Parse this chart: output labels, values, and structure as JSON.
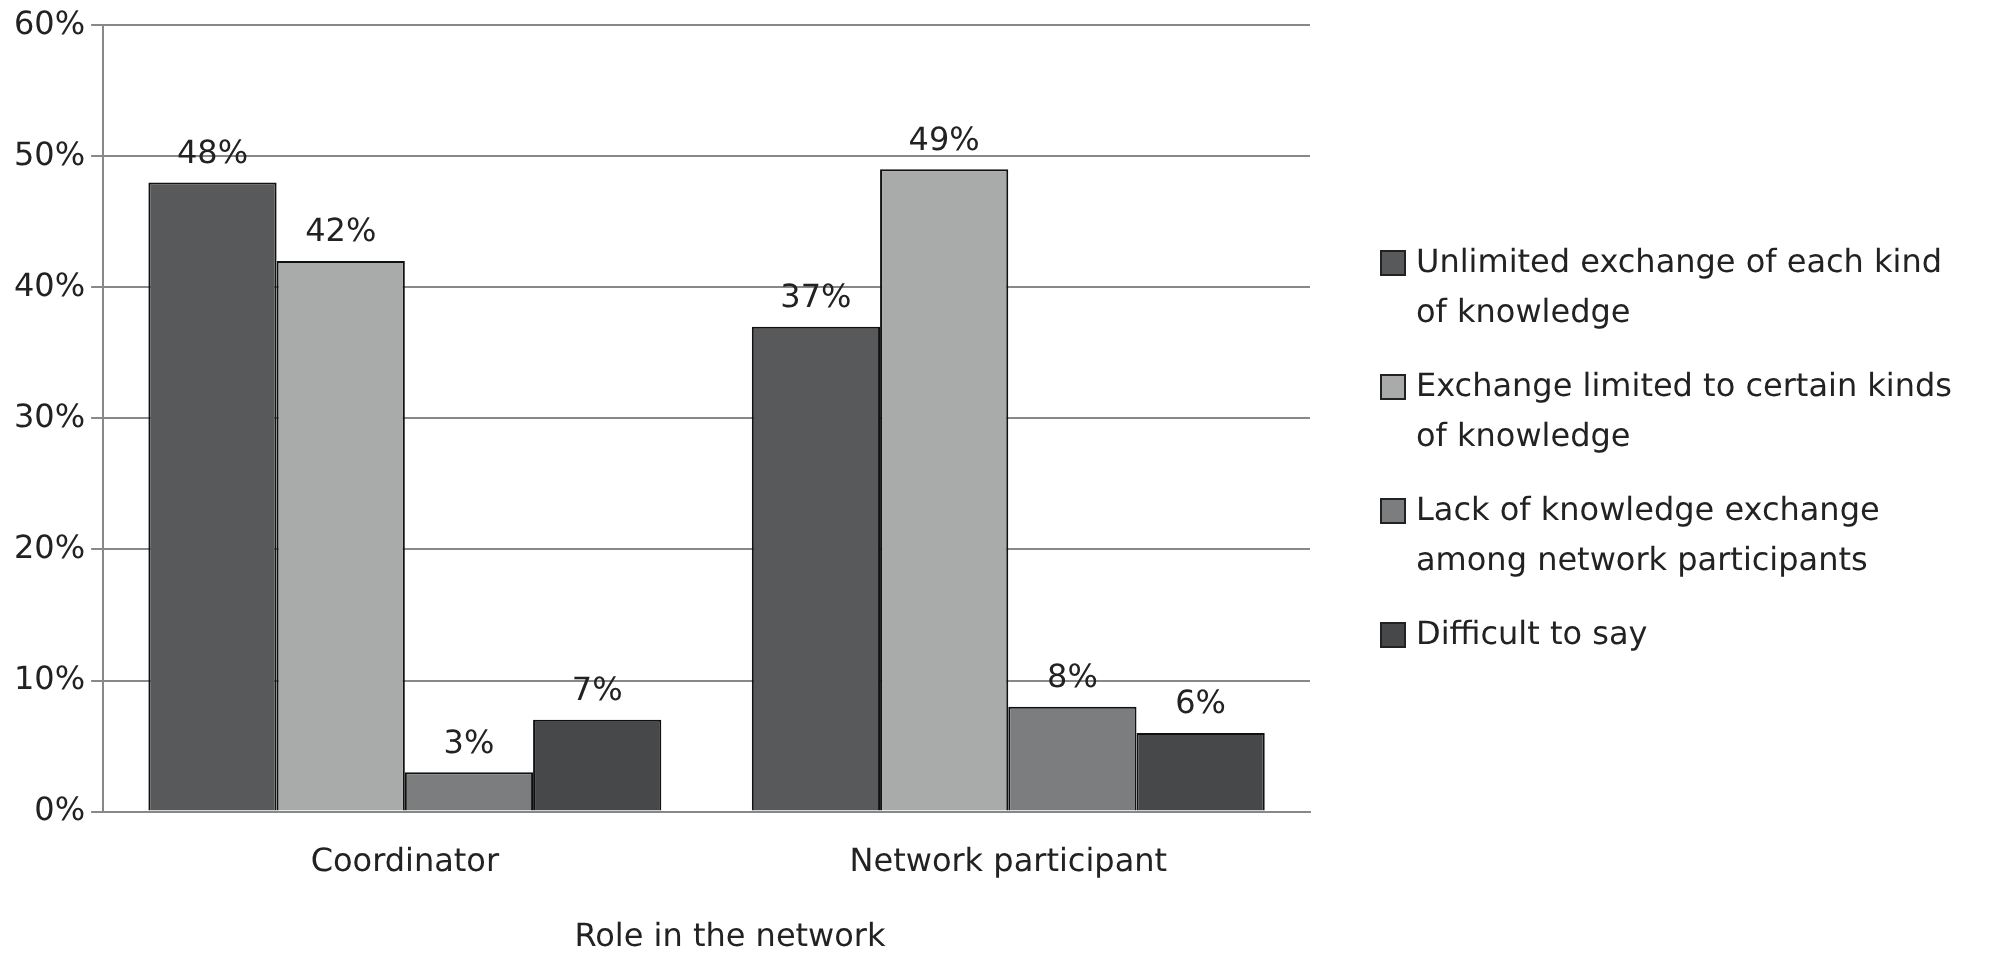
{
  "chart_data": {
    "type": "bar",
    "xlabel": "Role in the network",
    "categories": [
      "Coordinator",
      "Network participant"
    ],
    "series": [
      {
        "name": "Unlimited exchange of each kind of knowledge",
        "color": "#58595b",
        "values": [
          48,
          37
        ],
        "value_labels": [
          "48%",
          "37%"
        ]
      },
      {
        "name": "Exchange limited to certain kinds of knowledge",
        "color": "#a9aaaa",
        "values": [
          42,
          49
        ],
        "value_labels": [
          "42%",
          "49%"
        ]
      },
      {
        "name": "Lack of knowledge exchange among network participants",
        "color": "#7c7d7f",
        "values": [
          3,
          8
        ],
        "value_labels": [
          "3%",
          "8%"
        ]
      },
      {
        "name": "Difficult to say",
        "color": "#47484a",
        "values": [
          7,
          6
        ],
        "value_labels": [
          "7%",
          "6%"
        ]
      }
    ],
    "ylim": [
      0,
      60
    ],
    "yticks": [
      {
        "value": 0,
        "label": "0%"
      },
      {
        "value": 10,
        "label": "10%"
      },
      {
        "value": 20,
        "label": "20%"
      },
      {
        "value": 30,
        "label": "30%"
      },
      {
        "value": 40,
        "label": "40%"
      },
      {
        "value": 50,
        "label": "50%"
      },
      {
        "value": 60,
        "label": "60%"
      }
    ],
    "grid": "y",
    "legend": "right"
  }
}
